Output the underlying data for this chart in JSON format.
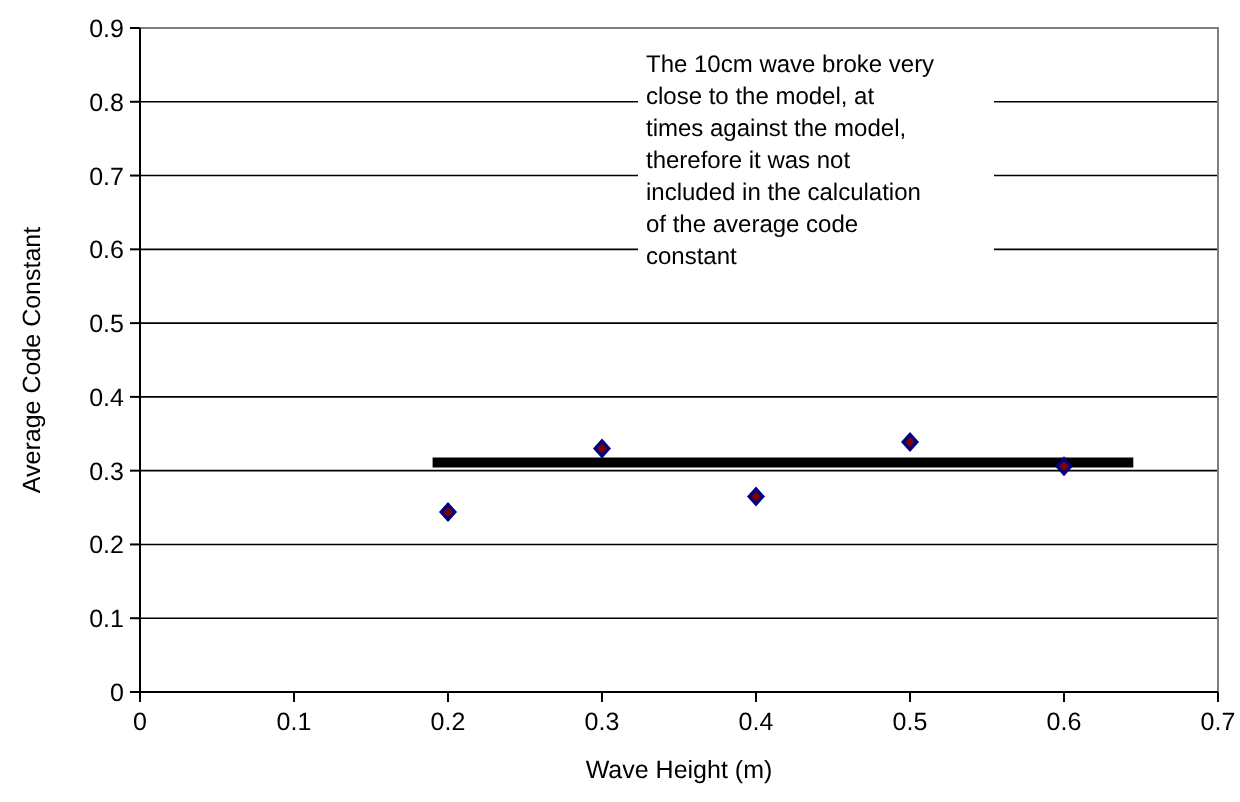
{
  "chart_data": {
    "type": "scatter",
    "xlabel": "Wave Height (m)",
    "ylabel": "Average Code Constant",
    "xlim": [
      0,
      0.7
    ],
    "xticks": [
      0,
      0.1,
      0.2,
      0.3,
      0.4,
      0.5,
      0.6,
      0.7
    ],
    "ylim": [
      0,
      0.9
    ],
    "yticks": [
      0,
      0.1,
      0.2,
      0.3,
      0.4,
      0.5,
      0.6,
      0.7,
      0.8,
      0.9
    ],
    "grid": "y",
    "marker": "diamond",
    "x": [
      0.2,
      0.3,
      0.4,
      0.5,
      0.6
    ],
    "series": [
      {
        "color": "#000080",
        "values": [
          0.244,
          0.33,
          0.265,
          0.339,
          0.306
        ]
      },
      {
        "type": "line",
        "marker": "none",
        "color": "#000000",
        "x": [
          0.19,
          0.645
        ],
        "values": [
          0.311,
          0.311
        ]
      }
    ],
    "annotations": [
      "The 10cm wave broke very close to the model, at times against the model, therefore it was not included in the calculation of the average code constant"
    ]
  }
}
